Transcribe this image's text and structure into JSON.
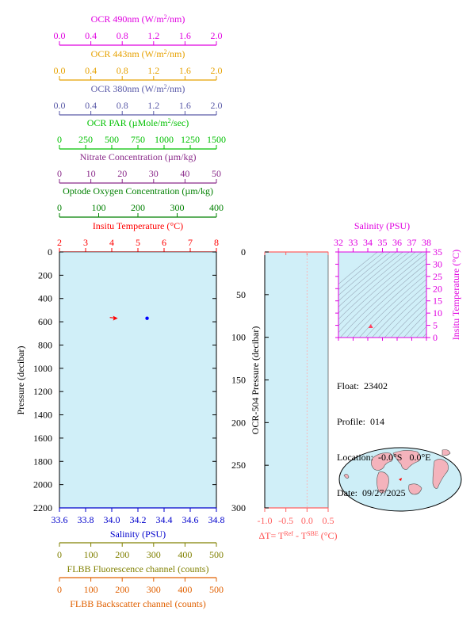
{
  "top_axes": [
    {
      "id": "ocr490",
      "label": "OCR 490nm (W/m²/nm)",
      "color": "#e000e0",
      "min": 0,
      "max": 2,
      "ticks": [
        "0.0",
        "0.4",
        "0.8",
        "1.2",
        "1.6",
        "2.0"
      ]
    },
    {
      "id": "ocr443",
      "label": "OCR 443nm (W/m²/nm)",
      "color": "#e6a100",
      "min": 0,
      "max": 2,
      "ticks": [
        "0.0",
        "0.4",
        "0.8",
        "1.2",
        "1.6",
        "2.0"
      ]
    },
    {
      "id": "ocr380",
      "label": "OCR 380nm (W/m²/nm)",
      "color": "#5a5aa8",
      "min": 0,
      "max": 2,
      "ticks": [
        "0.0",
        "0.4",
        "0.8",
        "1.2",
        "1.6",
        "2.0"
      ]
    },
    {
      "id": "ocrpar",
      "label": "OCR PAR (µMole/m²/sec)",
      "color": "#00c000",
      "min": 0,
      "max": 1500,
      "ticks": [
        "0",
        "250",
        "500",
        "750",
        "1000",
        "1250",
        "1500"
      ]
    },
    {
      "id": "nitrate",
      "label": "Nitrate Concentration (µm/kg)",
      "color": "#8a2a8a",
      "min": 0,
      "max": 50,
      "ticks": [
        "0",
        "10",
        "20",
        "30",
        "40",
        "50"
      ]
    },
    {
      "id": "oxygen",
      "label": "Optode Oxygen Concentration (µm/kg)",
      "color": "#008000",
      "min": 0,
      "max": 400,
      "ticks": [
        "0",
        "100",
        "200",
        "300",
        "400"
      ]
    },
    {
      "id": "temp",
      "label": "Insitu Temperature (°C)",
      "color": "#ff0000",
      "min": 2,
      "max": 8,
      "ticks": [
        "2",
        "3",
        "4",
        "5",
        "6",
        "7",
        "8"
      ]
    }
  ],
  "bottom_axes": [
    {
      "id": "salinity",
      "label": "Salinity (PSU)",
      "color": "#0000cc",
      "min": 33.6,
      "max": 34.8,
      "ticks": [
        "33.6",
        "33.8",
        "34.0",
        "34.2",
        "34.4",
        "34.6",
        "34.8"
      ]
    },
    {
      "id": "fluor",
      "label": "FLBB Fluorescence channel (counts)",
      "color": "#808000",
      "min": 0,
      "max": 500,
      "ticks": [
        "0",
        "100",
        "200",
        "300",
        "400",
        "500"
      ]
    },
    {
      "id": "backscatter",
      "label": "FLBB Backscatter channel (counts)",
      "color": "#e06000",
      "min": 0,
      "max": 500,
      "ticks": [
        "0",
        "100",
        "200",
        "300",
        "400",
        "500"
      ]
    }
  ],
  "chart_data": [
    {
      "type": "scatter",
      "ylabel": "Pressure (decibar)",
      "ylim": [
        2200,
        0
      ],
      "yticks": [
        "0",
        "200",
        "400",
        "600",
        "800",
        "1000",
        "1200",
        "1400",
        "1600",
        "1800",
        "2000",
        "2200"
      ],
      "series": [
        {
          "name": "Insitu Temperature (°C)",
          "color": "#ff0000",
          "x": [
            4.2
          ],
          "y": [
            570
          ]
        },
        {
          "name": "Salinity (PSU)",
          "color": "#0000ff",
          "x": [
            34.27
          ],
          "y": [
            570
          ]
        }
      ]
    },
    {
      "type": "line",
      "ylabel": "OCR-504 Pressure (decibar)",
      "xlabel": "ΔT= T^Ref - T^SBE (°C)",
      "xlim": [
        -1.0,
        0.5
      ],
      "ylim": [
        300,
        0
      ],
      "xticks": [
        "-1.0",
        "-0.5",
        "0.0",
        "0.5"
      ],
      "yticks": [
        "0",
        "50",
        "100",
        "150",
        "200",
        "250",
        "300"
      ],
      "color": "#ff6060",
      "series": []
    },
    {
      "type": "scatter",
      "title": "Salinity (PSU)",
      "ylabel": "Insitu Temperature (°C)",
      "xlim": [
        32,
        38
      ],
      "ylim": [
        0,
        35
      ],
      "xticks": [
        "32",
        "33",
        "34",
        "35",
        "36",
        "37",
        "38"
      ],
      "yticks": [
        "0",
        "5",
        "10",
        "15",
        "20",
        "25",
        "30",
        "35"
      ],
      "color": "#e000e0",
      "series": [
        {
          "name": "",
          "color": "#ff4060",
          "x": [
            34.2
          ],
          "y": [
            4.2
          ]
        }
      ]
    }
  ],
  "info": {
    "float": "Float:  23402",
    "profile": "Profile:  014",
    "location": "Location:  -0.0°S   0.0°E",
    "date": "Date:  09/27/2025"
  },
  "colors": {
    "plot_bg": "#d0eff8",
    "map_ocean": "#cdeef7",
    "map_land": "#f4b3bc"
  }
}
